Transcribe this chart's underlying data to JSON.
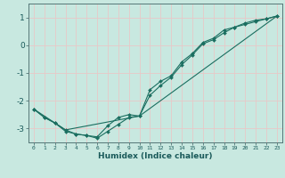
{
  "xlabel": "Humidex (Indice chaleur)",
  "bg_color": "#c8e8e0",
  "grid_color": "#e8c8c8",
  "line_color": "#1a6e60",
  "marker_color": "#1a6e60",
  "xlim": [
    -0.5,
    23.5
  ],
  "ylim": [
    -3.5,
    1.5
  ],
  "xticks": [
    0,
    1,
    2,
    3,
    4,
    5,
    6,
    7,
    8,
    9,
    10,
    11,
    12,
    13,
    14,
    15,
    16,
    17,
    18,
    19,
    20,
    21,
    22,
    23
  ],
  "yticks": [
    -3,
    -2,
    -1,
    0,
    1
  ],
  "line1_x": [
    0,
    1,
    2,
    3,
    4,
    5,
    6,
    7,
    8,
    9,
    10,
    11,
    12,
    13,
    14,
    15,
    16,
    17,
    18,
    19,
    20,
    21,
    22,
    23
  ],
  "line1_y": [
    -2.3,
    -2.6,
    -2.8,
    -3.1,
    -3.2,
    -3.25,
    -3.3,
    -2.9,
    -2.6,
    -2.5,
    -2.55,
    -1.8,
    -1.45,
    -1.15,
    -0.7,
    -0.35,
    0.05,
    0.2,
    0.45,
    0.65,
    0.75,
    0.85,
    0.95,
    1.05
  ],
  "line2_x": [
    0,
    1,
    2,
    3,
    4,
    5,
    6,
    7,
    8,
    9,
    10,
    11,
    12,
    13,
    14,
    15,
    16,
    17,
    18,
    19,
    20,
    21,
    22,
    23
  ],
  "line2_y": [
    -2.3,
    -2.6,
    -2.8,
    -3.05,
    -3.2,
    -3.25,
    -3.35,
    -3.1,
    -2.85,
    -2.6,
    -2.55,
    -1.6,
    -1.3,
    -1.1,
    -0.6,
    -0.3,
    0.1,
    0.25,
    0.55,
    0.65,
    0.8,
    0.9,
    0.95,
    1.05
  ],
  "line3_x": [
    0,
    3,
    10,
    23
  ],
  "line3_y": [
    -2.3,
    -3.05,
    -2.55,
    1.05
  ]
}
